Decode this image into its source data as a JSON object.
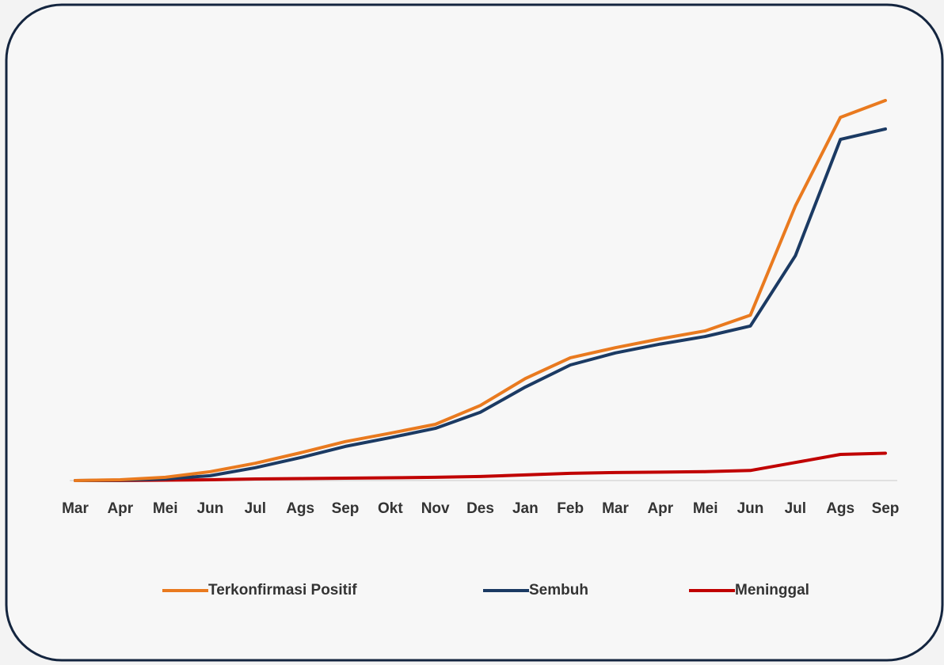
{
  "chart_data": {
    "type": "line",
    "categories": [
      "Mar",
      "Apr",
      "Mei",
      "Jun",
      "Jul",
      "Ags",
      "Sep",
      "Okt",
      "Nov",
      "Des",
      "Jan",
      "Feb",
      "Mar",
      "Apr",
      "Mei",
      "Jun",
      "Jul",
      "Ags",
      "Sep"
    ],
    "series": [
      {
        "name": "Terkonfirmasi Positif",
        "color": "#e97a1f",
        "values": [
          0,
          0.2,
          0.8,
          2.2,
          4.3,
          6.9,
          9.7,
          11.8,
          14,
          18.7,
          25.4,
          30.6,
          33.1,
          35.3,
          37.3,
          41.2,
          68.4,
          90.5,
          94.7
        ]
      },
      {
        "name": "Sembuh",
        "color": "#1b3a63",
        "values": [
          0,
          0.1,
          0.4,
          1.2,
          3.2,
          5.7,
          8.5,
          10.7,
          13,
          17,
          23.3,
          28.8,
          31.8,
          34,
          35.9,
          38.5,
          56,
          85,
          87.6
        ]
      },
      {
        "name": "Meninggal",
        "color": "#c00000",
        "values": [
          0,
          0,
          0.1,
          0.2,
          0.4,
          0.5,
          0.6,
          0.7,
          0.8,
          1,
          1.4,
          1.8,
          2,
          2.1,
          2.2,
          2.5,
          4.5,
          6.5,
          6.8
        ]
      }
    ],
    "ylim": [
      0,
      100
    ],
    "legend": "bottom"
  }
}
